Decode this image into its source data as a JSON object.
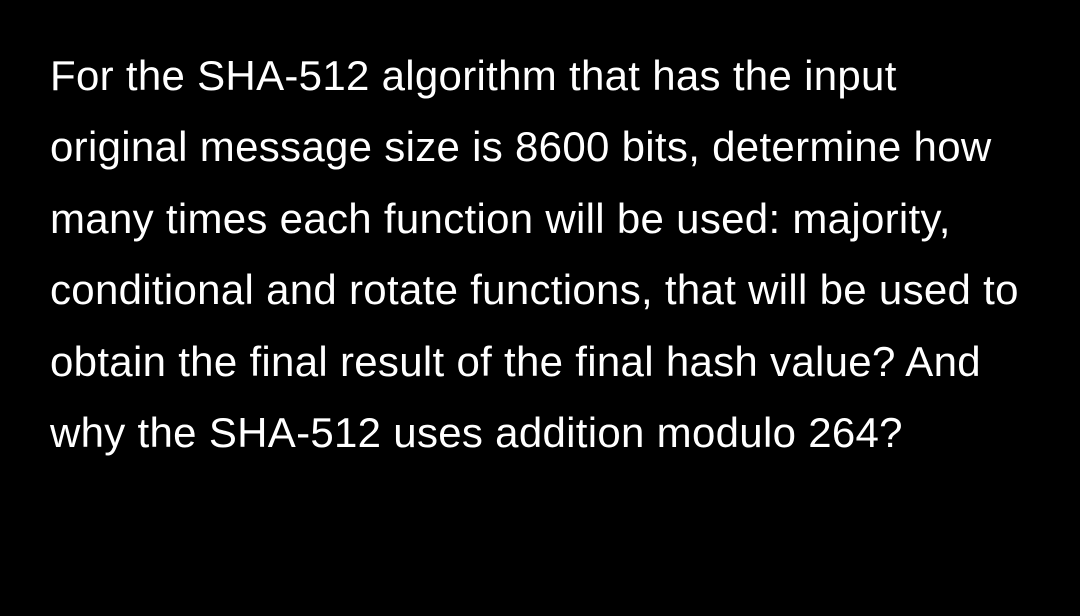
{
  "question": {
    "text": "For the SHA-512 algorithm that has the input original message size is 8600 bits, determine how many times each function will be used: majority, conditional and rotate functions, that will be used to obtain the final result of the final hash value? And why the SHA-512 uses addition modulo 264?",
    "background_color": "#000000",
    "text_color": "#ffffff",
    "font_size": 42,
    "line_height": 1.7
  }
}
